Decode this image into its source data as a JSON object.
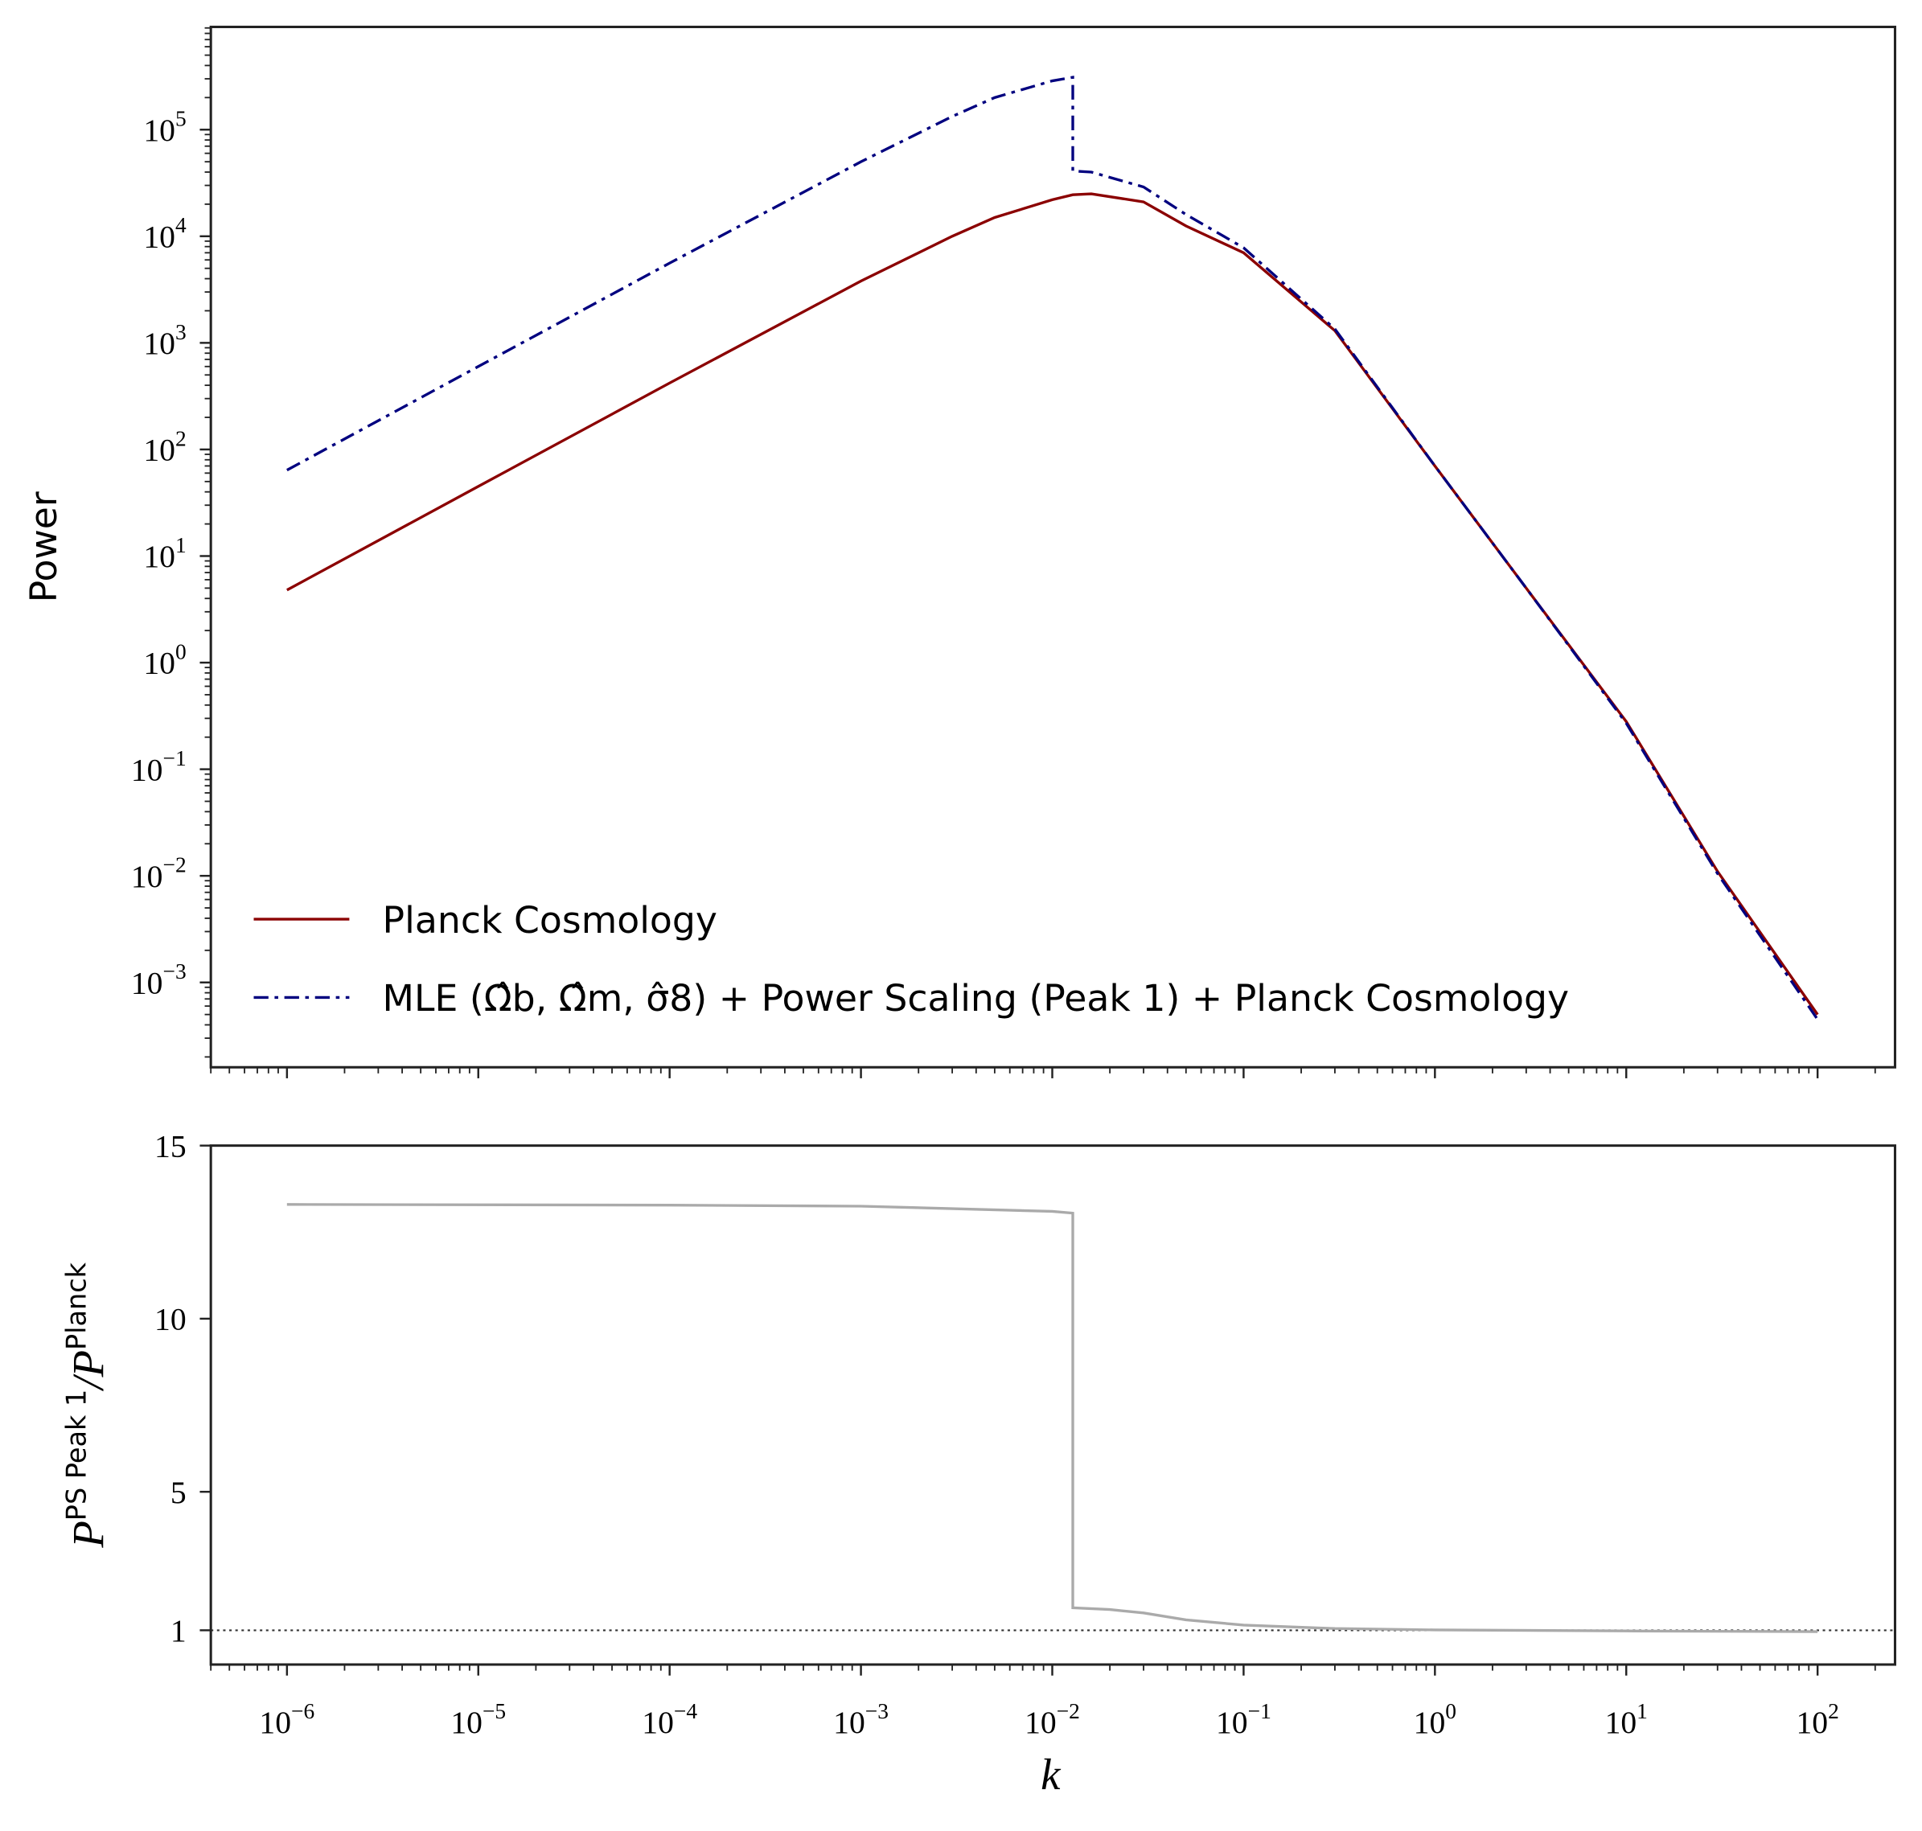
{
  "chart_data": [
    {
      "type": "line",
      "ylabel": "Power",
      "xlog": true,
      "ylog": true,
      "legend": true,
      "legend_loc": "lower left",
      "show_xtick_labels": false,
      "xlim": [
        4e-07,
        254.0
      ],
      "ylim": [
        0.00016,
        920000.0
      ],
      "xticks": [
        1e-06,
        1e-05,
        0.0001,
        0.001,
        0.01,
        0.1,
        1,
        10,
        100
      ],
      "yticks": [
        {
          "value": 0.001,
          "label": "10",
          "sup": "−3"
        },
        {
          "value": 0.01,
          "label": "10",
          "sup": "−2"
        },
        {
          "value": 0.1,
          "label": "10",
          "sup": "−1"
        },
        {
          "value": 1,
          "label": "10",
          "sup": "0"
        },
        {
          "value": 10,
          "label": "10",
          "sup": "1"
        },
        {
          "value": 100,
          "label": "10",
          "sup": "2"
        },
        {
          "value": 1000,
          "label": "10",
          "sup": "3"
        },
        {
          "value": 10000,
          "label": "10",
          "sup": "4"
        },
        {
          "value": 100000,
          "label": "10",
          "sup": "5"
        }
      ],
      "x": [
        1e-06,
        1e-05,
        0.0001,
        0.001,
        0.003,
        0.005,
        0.01,
        0.0128,
        0.0128,
        0.016,
        0.03,
        0.05,
        0.1,
        0.3,
        1,
        3,
        10,
        30,
        100
      ],
      "series": [
        {
          "name": "Planck Cosmology",
          "color": "#8b0000",
          "dash": "solid",
          "values": [
            4.8,
            45,
            420,
            3800,
            10000,
            15000,
            22000,
            24500,
            24500,
            25000,
            21000,
            12500,
            7000,
            1300,
            70,
            5,
            0.28,
            0.011,
            0.0005
          ]
        },
        {
          "name": "MLE (Ω̂b, Ω̂m, σ̂8) + Power Scaling (Peak 1) + Planck Cosmology",
          "color": "#00007f",
          "dash": "dashdot",
          "values": [
            64,
            600,
            5600,
            50000,
            133000,
            200000,
            287000,
            310000,
            41000,
            40000,
            29000,
            16000,
            7800,
            1350,
            70,
            5,
            0.27,
            0.0105,
            0.00045
          ]
        }
      ]
    },
    {
      "type": "line",
      "xlabel": "k",
      "ylabel": [
        "P",
        "PS Peak 1",
        "/P",
        "Planck"
      ],
      "xlog": true,
      "ylog": false,
      "show_xtick_labels": true,
      "xlim": [
        4e-07,
        254.0
      ],
      "ylim": [
        0.01,
        15
      ],
      "xticks": [
        {
          "value": 1e-06,
          "label": "10",
          "sup": "−6"
        },
        {
          "value": 1e-05,
          "label": "10",
          "sup": "−5"
        },
        {
          "value": 0.0001,
          "label": "10",
          "sup": "−4"
        },
        {
          "value": 0.001,
          "label": "10",
          "sup": "−3"
        },
        {
          "value": 0.01,
          "label": "10",
          "sup": "−2"
        },
        {
          "value": 0.1,
          "label": "10",
          "sup": "−1"
        },
        {
          "value": 1,
          "label": "10",
          "sup": "0"
        },
        {
          "value": 10,
          "label": "10",
          "sup": "1"
        },
        {
          "value": 100,
          "label": "10",
          "sup": "2"
        }
      ],
      "yticks": [
        1,
        5,
        10,
        15
      ],
      "hline": 1,
      "x": [
        1e-06,
        0.0001,
        0.001,
        0.01,
        0.0128,
        0.0128,
        0.02,
        0.03,
        0.05,
        0.1,
        0.3,
        1,
        10,
        100
      ],
      "series": [
        {
          "color": "#aaaaaa",
          "dash": "solid",
          "values": [
            13.3,
            13.28,
            13.25,
            13.1,
            13.05,
            1.65,
            1.6,
            1.5,
            1.3,
            1.15,
            1.05,
            1.01,
            0.98,
            0.96
          ]
        }
      ]
    }
  ]
}
